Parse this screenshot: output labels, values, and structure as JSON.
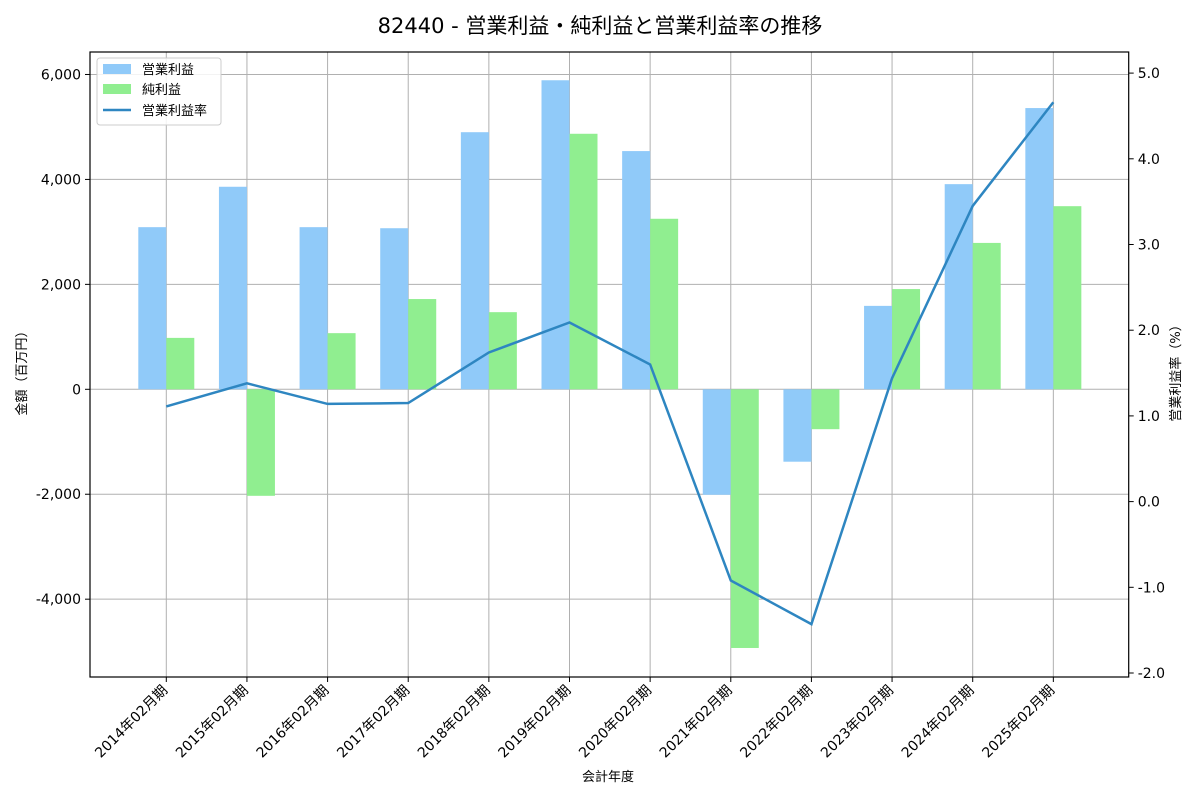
{
  "chart_data": {
    "type": "bar",
    "title": "82440 - 営業利益・純利益と営業利益率の推移",
    "xlabel": "会計年度",
    "ylabel": "金額（百万円）",
    "y2label": "営業利益率（%）",
    "ylim": [
      -5450,
      6400
    ],
    "y2lim": [
      -2.05,
      5.25
    ],
    "yticks": [
      -4000,
      -2000,
      0,
      2000,
      4000,
      6000
    ],
    "ytick_labels": [
      "-4,000",
      "-2,000",
      "0",
      "2,000",
      "4,000",
      "6,000"
    ],
    "y2ticks": [
      -2.0,
      -1.0,
      0.0,
      1.0,
      2.0,
      3.0,
      4.0,
      5.0
    ],
    "y2tick_labels": [
      "-2.0",
      "-1.0",
      "0.0",
      "1.0",
      "2.0",
      "3.0",
      "4.0",
      "5.0"
    ],
    "grid": true,
    "legend_position": "upper left",
    "categories": [
      "2014年02月期",
      "2015年02月期",
      "2016年02月期",
      "2017年02月期",
      "2018年02月期",
      "2019年02月期",
      "2020年02月期",
      "2021年02月期",
      "2022年02月期",
      "2023年02月期",
      "2024年02月期",
      "2025年02月期"
    ],
    "series": [
      {
        "name": "営業利益",
        "type": "bar",
        "axis": "left",
        "color": "#90CAF9",
        "values": [
          3090,
          3860,
          3090,
          3070,
          4900,
          5890,
          4540,
          -2010,
          -1380,
          1590,
          3910,
          5360
        ]
      },
      {
        "name": "純利益",
        "type": "bar",
        "axis": "left",
        "color": "#90EE90",
        "values": [
          980,
          -2030,
          1070,
          1720,
          1470,
          4870,
          3250,
          -4930,
          -760,
          1910,
          2790,
          3490
        ]
      },
      {
        "name": "営業利益率",
        "type": "line",
        "axis": "right",
        "color": "#2E86C1",
        "values": [
          1.11,
          1.38,
          1.14,
          1.15,
          1.74,
          2.09,
          1.6,
          -0.92,
          -1.43,
          1.44,
          3.45,
          4.66
        ]
      }
    ]
  }
}
